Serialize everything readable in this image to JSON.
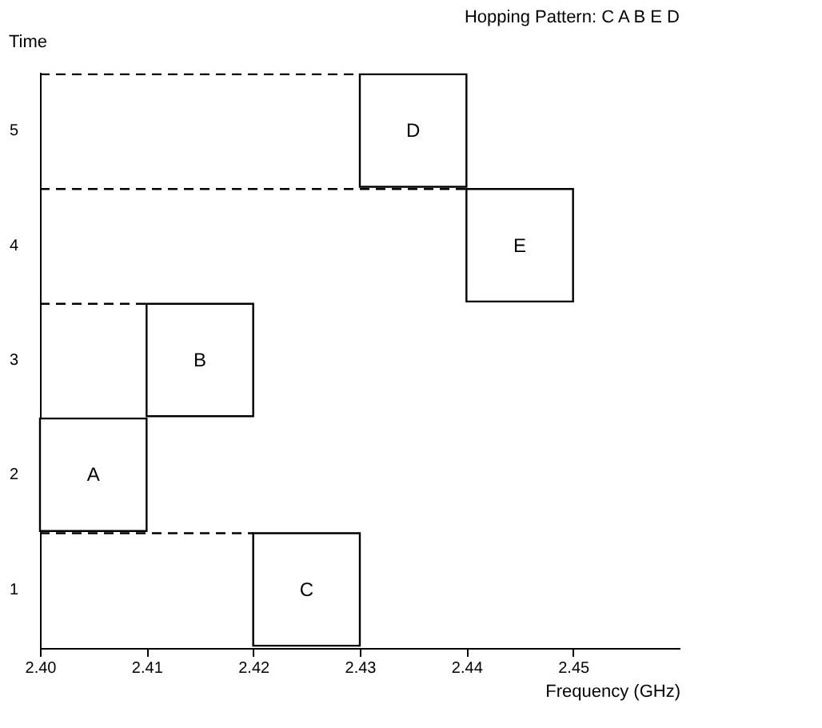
{
  "chart_data": {
    "type": "bar",
    "orientation": "horizontal",
    "title": "Hopping Pattern: C A B E D",
    "xlabel": "Frequency (GHz)",
    "ylabel": "Time",
    "categories": [
      "5",
      "4",
      "3",
      "2",
      "1"
    ],
    "base": [
      2.43,
      2.44,
      2.41,
      2.4,
      2.42
    ],
    "values": [
      0.01,
      0.01,
      0.01,
      0.01,
      0.01
    ],
    "value_labels": [
      "D",
      "E",
      "B",
      "A",
      "C"
    ],
    "color": "#ffffff",
    "xlim": [
      2.4,
      2.46
    ],
    "xticks": [
      {
        "value": 2.4,
        "label": "2.40"
      },
      {
        "value": 2.41,
        "label": "2.41"
      },
      {
        "value": 2.42,
        "label": "2.42"
      },
      {
        "value": 2.43,
        "label": "2.43"
      },
      {
        "value": 2.44,
        "label": "2.44"
      },
      {
        "value": 2.45,
        "label": "2.45"
      }
    ],
    "ref_lines": [
      {
        "axis": "y",
        "value": "5",
        "line_style": "dashed"
      },
      {
        "axis": "y",
        "value": "4",
        "line_style": "dashed"
      },
      {
        "axis": "y",
        "value": "3",
        "line_style": "dashed"
      },
      {
        "axis": "y",
        "value": "1",
        "line_style": "dashed"
      }
    ],
    "grid": false
  }
}
